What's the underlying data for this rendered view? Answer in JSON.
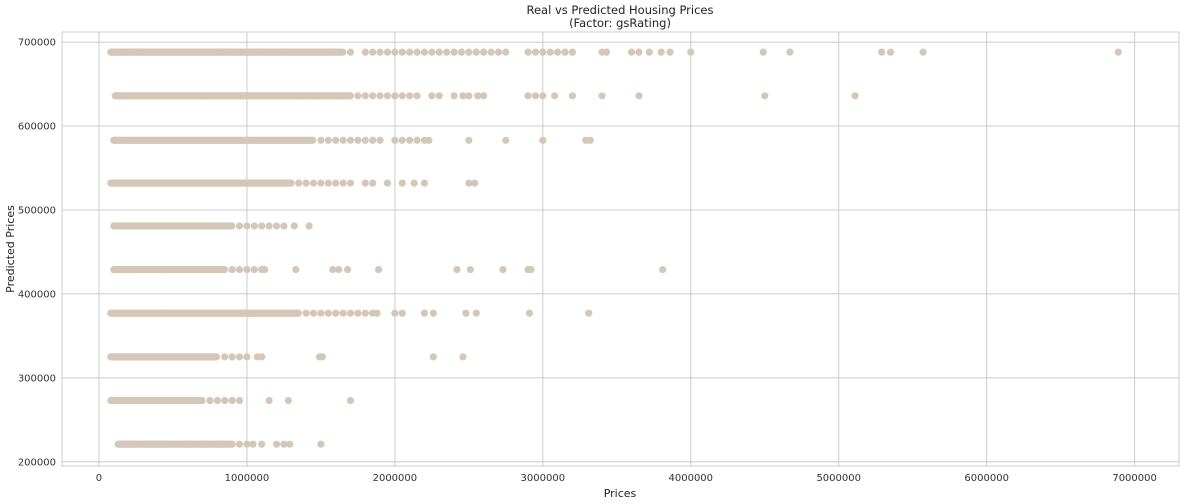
{
  "chart_data": {
    "type": "scatter",
    "title": "Real vs Predicted Housing Prices",
    "subtitle": "(Factor: gsRating)",
    "xlabel": "Prices",
    "ylabel": "Predicted Prices",
    "xlim": [
      -250000,
      7300000
    ],
    "ylim": [
      195000,
      712000
    ],
    "xticks": [
      0,
      1000000,
      2000000,
      3000000,
      4000000,
      5000000,
      6000000,
      7000000
    ],
    "xtick_labels": [
      "0",
      "1000000",
      "2000000",
      "3000000",
      "4000000",
      "5000000",
      "6000000",
      "7000000"
    ],
    "yticks": [
      200000,
      300000,
      400000,
      500000,
      600000,
      700000
    ],
    "ytick_labels": [
      "200000",
      "300000",
      "400000",
      "500000",
      "600000",
      "700000"
    ],
    "grid": true,
    "marker_color": "#d5c7b8",
    "background_color": "#ffffff",
    "grid_color": "#cccccc",
    "series": [
      {
        "y": 688000,
        "dense_range": [
          80000,
          1650000
        ],
        "x": [
          1700000,
          1800000,
          1850000,
          1900000,
          1950000,
          2000000,
          2050000,
          2100000,
          2150000,
          2200000,
          2250000,
          2300000,
          2350000,
          2400000,
          2450000,
          2500000,
          2550000,
          2600000,
          2650000,
          2700000,
          2750000,
          2900000,
          2950000,
          3000000,
          3050000,
          3100000,
          3150000,
          3200000,
          3400000,
          3430000,
          3600000,
          3650000,
          3720000,
          3800000,
          3860000,
          4000000,
          4490000,
          4670000,
          5290000,
          5350000,
          5570000,
          6890000
        ]
      },
      {
        "y": 636000,
        "dense_range": [
          110000,
          1700000
        ],
        "x": [
          1750000,
          1800000,
          1850000,
          1900000,
          1950000,
          2000000,
          2050000,
          2100000,
          2150000,
          2250000,
          2300000,
          2400000,
          2460000,
          2500000,
          2560000,
          2600000,
          2900000,
          2950000,
          3000000,
          3080000,
          3200000,
          3400000,
          3650000,
          4500000,
          5110000
        ]
      },
      {
        "y": 583000,
        "dense_range": [
          100000,
          1450000
        ],
        "x": [
          1500000,
          1550000,
          1600000,
          1650000,
          1700000,
          1750000,
          1800000,
          1850000,
          1900000,
          2000000,
          2050000,
          2100000,
          2150000,
          2200000,
          2230000,
          2500000,
          2750000,
          3000000,
          3290000,
          3320000
        ]
      },
      {
        "y": 532000,
        "dense_range": [
          80000,
          1300000
        ],
        "x": [
          1350000,
          1400000,
          1450000,
          1500000,
          1550000,
          1600000,
          1650000,
          1700000,
          1800000,
          1850000,
          1950000,
          2050000,
          2130000,
          2200000,
          2500000,
          2540000
        ]
      },
      {
        "y": 481000,
        "dense_range": [
          100000,
          900000
        ],
        "x": [
          950000,
          1000000,
          1050000,
          1100000,
          1150000,
          1200000,
          1250000,
          1320000,
          1420000
        ]
      },
      {
        "y": 429000,
        "dense_range": [
          100000,
          850000
        ],
        "x": [
          900000,
          950000,
          1000000,
          1050000,
          1100000,
          1120000,
          1330000,
          1580000,
          1620000,
          1680000,
          1890000,
          2420000,
          2510000,
          2730000,
          2900000,
          2920000,
          3810000
        ]
      },
      {
        "y": 377000,
        "dense_range": [
          80000,
          1350000
        ],
        "x": [
          1400000,
          1450000,
          1500000,
          1550000,
          1600000,
          1650000,
          1700000,
          1750000,
          1800000,
          1850000,
          1880000,
          2000000,
          2050000,
          2200000,
          2260000,
          2480000,
          2550000,
          2910000,
          3310000
        ]
      },
      {
        "y": 325000,
        "dense_range": [
          80000,
          800000
        ],
        "x": [
          850000,
          900000,
          950000,
          1000000,
          1070000,
          1100000,
          1490000,
          1510000,
          2260000,
          2460000
        ]
      },
      {
        "y": 273000,
        "dense_range": [
          80000,
          700000
        ],
        "x": [
          750000,
          800000,
          850000,
          900000,
          950000,
          1150000,
          1280000,
          1700000
        ]
      },
      {
        "y": 221000,
        "dense_range": [
          130000,
          900000
        ],
        "x": [
          950000,
          1000000,
          1040000,
          1100000,
          1200000,
          1250000,
          1290000,
          1500000
        ]
      }
    ]
  }
}
